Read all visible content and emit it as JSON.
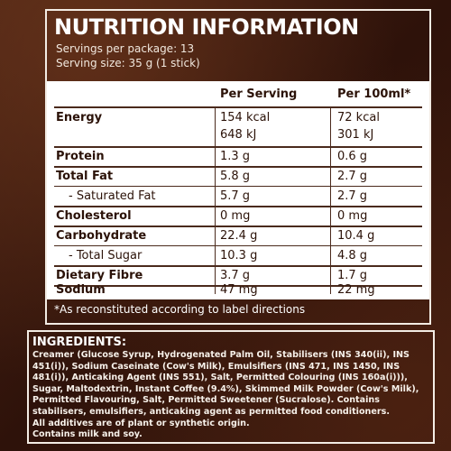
{
  "title": "NUTRITION INFORMATION",
  "servings_per_package": "Servings per package: 13",
  "serving_size": "Serving size: 35 g (1 stick)",
  "table": {
    "headers": [
      "",
      "Per Serving",
      "Per 100ml*"
    ],
    "rows": [
      {
        "label": "Energy",
        "per_serving": "154 kcal",
        "per_100ml": "72 kcal"
      },
      {
        "label": "",
        "per_serving": "648 kJ",
        "per_100ml": "301 kJ"
      },
      {
        "label": "Protein",
        "per_serving": "1.3 g",
        "per_100ml": "0.6 g"
      },
      {
        "label": "Total Fat",
        "per_serving": "5.8 g",
        "per_100ml": "2.7 g"
      },
      {
        "label": "- Saturated Fat",
        "per_serving": "5.7 g",
        "per_100ml": "2.7 g"
      },
      {
        "label": "Cholesterol",
        "per_serving": "0 mg",
        "per_100ml": "0 mg"
      },
      {
        "label": "Carbohydrate",
        "per_serving": "22.4 g",
        "per_100ml": "10.4 g"
      },
      {
        "label": "- Total Sugar",
        "per_serving": "10.3 g",
        "per_100ml": "4.8 g"
      },
      {
        "label": "Dietary Fibre",
        "per_serving": "3.7 g",
        "per_100ml": "1.7 g"
      },
      {
        "label": "Sodium",
        "per_serving": "47 mg",
        "per_100ml": "22 mg"
      }
    ]
  },
  "footnote": "*As reconstituted according to label directions",
  "ingredients": {
    "title": "INGREDIENTS:",
    "text": "Creamer (Glucose Syrup, Hydrogenated Palm Oil, Stabilisers (INS 340(ii), INS 451(i)), Sodium Caseinate (Cow's Milk), Emulsifiers (INS 471, INS 1450, INS 481(i)), Anticaking Agent (INS 551), Salt, Permitted Colouring (INS 160a(i))), Sugar, Maltodextrin, Instant Coffee (9.4%), Skimmed Milk Powder (Cow's Milk), Permitted Flavouring, Salt, Permitted Sweetener (Sucralose). Contains stabilisers, emulsifiers, anticaking agent as permitted food conditioners.",
    "line2": "All additives are of plant or synthetic origin.",
    "line3": "Contains milk and soy."
  },
  "colors": {
    "background": "#3a1a10",
    "panel_border": "#f3ece4",
    "table_bg": "#ffffff",
    "table_text": "#2b1208"
  }
}
